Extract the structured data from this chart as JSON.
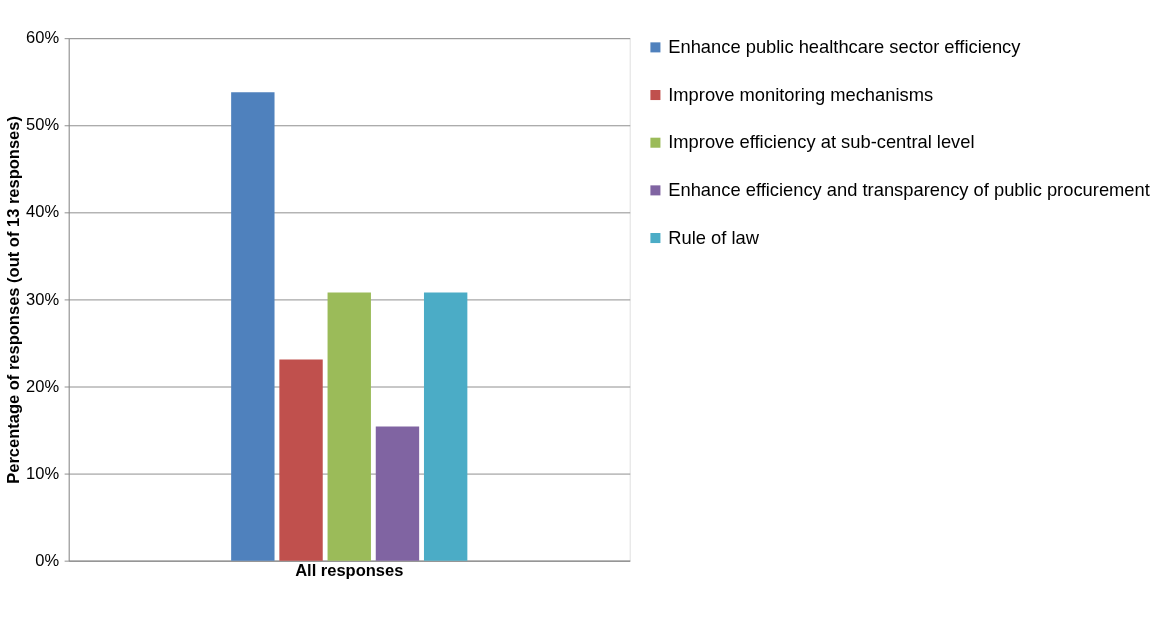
{
  "chart_data": {
    "type": "bar",
    "ylabel": "Percentage of responses (out of 13 responses)",
    "categories": [
      "All responses"
    ],
    "series": [
      {
        "name": "Enhance public healthcare sector efficiency",
        "color": "#4f81bd",
        "values": [
          53.8
        ]
      },
      {
        "name": "Improve monitoring mechanisms",
        "color": "#c0504d",
        "values": [
          23.1
        ]
      },
      {
        "name": "Improve efficiency at sub-central level",
        "color": "#9bbb59",
        "values": [
          30.8
        ]
      },
      {
        "name": "Enhance efficiency and transparency of public procurement",
        "color": "#8064a2",
        "values": [
          15.4
        ]
      },
      {
        "name": "Rule of law",
        "color": "#4bacc6",
        "values": [
          30.8
        ]
      }
    ],
    "ylim": [
      0,
      60
    ],
    "yticks": [
      {
        "value": 0,
        "label": "0%"
      },
      {
        "value": 10,
        "label": "10%"
      },
      {
        "value": 20,
        "label": "20%"
      },
      {
        "value": 30,
        "label": "30%"
      },
      {
        "value": 40,
        "label": "40%"
      },
      {
        "value": 50,
        "label": "50%"
      },
      {
        "value": 60,
        "label": "60%"
      }
    ],
    "grid": "y",
    "legend": "right"
  }
}
